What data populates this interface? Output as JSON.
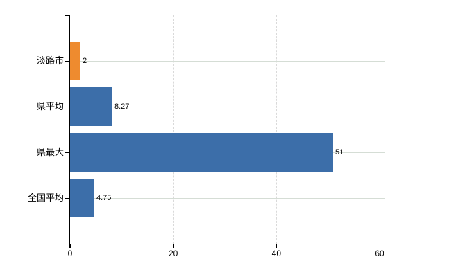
{
  "chart_data": {
    "type": "bar",
    "orientation": "horizontal",
    "title": "",
    "xlabel": "",
    "ylabel": "",
    "categories": [
      "淡路市",
      "県平均",
      "県最大",
      "全国平均"
    ],
    "values": [
      2,
      8.27,
      51,
      4.75
    ],
    "value_labels": [
      "2",
      "8.27",
      "51",
      "4.75"
    ],
    "bar_colors": [
      "#EE8B2F",
      "#3C6EA9",
      "#3C6EA9",
      "#3C6EA9"
    ],
    "xlim": [
      0,
      60
    ],
    "x_ticks": [
      0,
      20,
      40,
      60
    ],
    "x_tick_labels": [
      "0",
      "20",
      "40",
      "60"
    ],
    "grid": true,
    "legend": false
  },
  "colors": {
    "highlight_bar": "#EE8B2F",
    "default_bar": "#3C6EA9",
    "h_gridline": "#d5ddd5",
    "v_gridline": "#d9d9d9",
    "top_border": "#c9c9c9",
    "axis": "#000000",
    "background": "#ffffff"
  }
}
